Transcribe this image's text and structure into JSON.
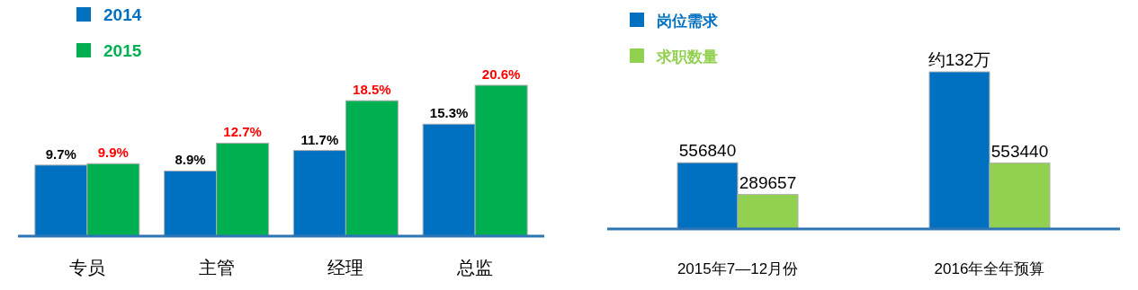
{
  "chart_data": [
    {
      "type": "bar",
      "categories": [
        "专员",
        "主管",
        "经理",
        "总监"
      ],
      "legend": "top left",
      "series": [
        {
          "name": "2014",
          "color": "#0070c0",
          "values": [
            9.7,
            8.9,
            11.7,
            15.3
          ],
          "value_labels": [
            "9.7%",
            "8.9%",
            "11.7%",
            "15.3%"
          ]
        },
        {
          "name": "2015",
          "color": "#00b050",
          "values": [
            9.9,
            12.7,
            18.5,
            20.6
          ],
          "value_labels": [
            "9.9%",
            "12.7%",
            "18.5%",
            "20.6%"
          ]
        }
      ]
    },
    {
      "type": "bar",
      "categories": [
        "2015年7—12月份",
        "2016年全年预算"
      ],
      "legend": "top left",
      "series": [
        {
          "name": "岗位需求",
          "color": "#0070c0",
          "values": [
            556840,
            1320000
          ],
          "value_labels": [
            "556840",
            "约132万"
          ]
        },
        {
          "name": "求职数量",
          "color": "#92d050",
          "values": [
            289657,
            553440
          ],
          "value_labels": [
            "289657",
            "553440"
          ]
        }
      ]
    }
  ]
}
